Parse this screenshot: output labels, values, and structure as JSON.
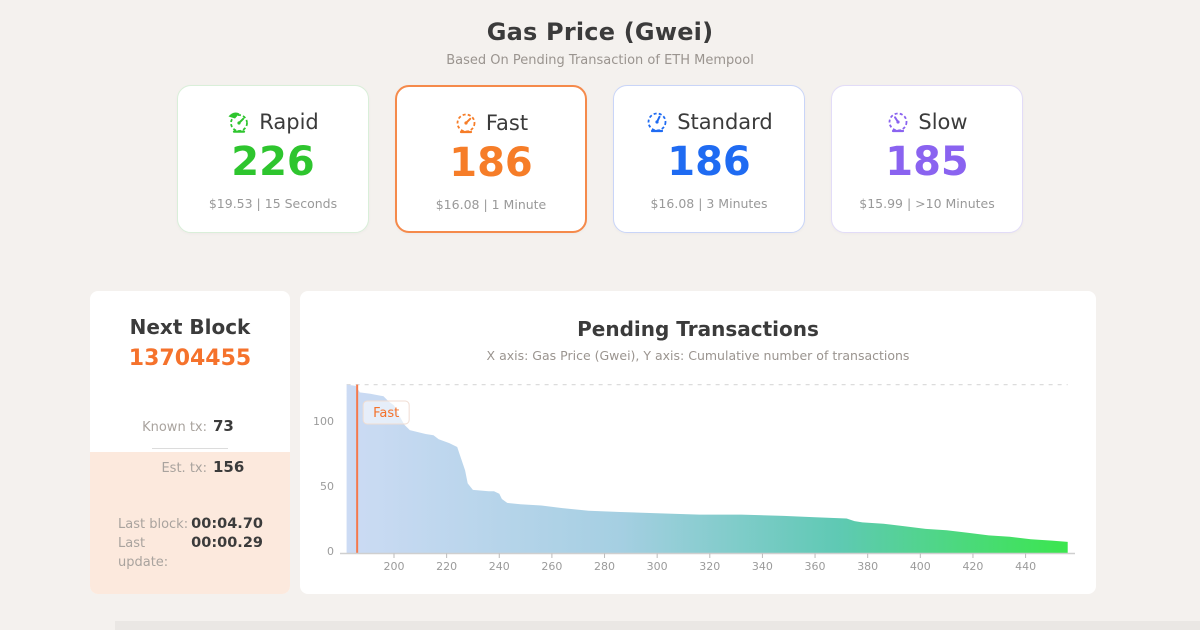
{
  "header": {
    "title": "Gas Price (Gwei)",
    "subtitle": "Based On Pending Transaction of ETH Mempool"
  },
  "cards": [
    {
      "label": "Rapid",
      "value": "226",
      "detail": "$19.53 | 15 Seconds",
      "color": "#2ec52e",
      "border": "#d9efd9",
      "border_width": 1,
      "icon": "rapid-gauge-icon",
      "selected": false
    },
    {
      "label": "Fast",
      "value": "186",
      "detail": "$16.08 | 1 Minute",
      "color": "#f67d28",
      "border": "#f58a4b",
      "border_width": 2,
      "icon": "fast-gauge-icon",
      "selected": true
    },
    {
      "label": "Standard",
      "value": "186",
      "detail": "$16.08 | 3 Minutes",
      "color": "#1f6bf2",
      "border": "#c9d5f8",
      "border_width": 1,
      "icon": "standard-gauge-icon",
      "selected": false
    },
    {
      "label": "Slow",
      "value": "185",
      "detail": "$15.99 | >10 Minutes",
      "color": "#8a63f0",
      "border": "#e2dcf8",
      "border_width": 1,
      "icon": "slow-gauge-icon",
      "selected": false
    }
  ],
  "next_block": {
    "title": "Next Block",
    "number": "13704455",
    "known_tx_label": "Known tx:",
    "known_tx_value": "73",
    "est_tx_label": "Est. tx:",
    "est_tx_value": "156",
    "last_block_label": "Last block:",
    "last_block_value": "00:04.70",
    "last_update_label": "Last update:",
    "last_update_value": "00:00.29"
  },
  "chart": {
    "title": "Pending Transactions",
    "subtitle": "X axis: Gas Price (Gwei), Y axis: Cumulative number of transactions"
  },
  "chart_data": {
    "type": "area",
    "title": "Pending Transactions",
    "xlabel": "Gas Price (Gwei)",
    "ylabel": "Cumulative number of transactions",
    "points": [
      [
        182,
        128
      ],
      [
        185.5,
        127
      ],
      [
        187,
        122
      ],
      [
        191,
        121
      ],
      [
        196,
        119
      ],
      [
        198,
        115
      ],
      [
        200,
        112
      ],
      [
        202,
        104
      ],
      [
        204,
        97
      ],
      [
        206,
        93
      ],
      [
        212,
        90
      ],
      [
        215,
        89
      ],
      [
        217,
        86
      ],
      [
        221,
        83
      ],
      [
        224,
        80
      ],
      [
        225,
        74
      ],
      [
        227,
        62
      ],
      [
        228,
        52
      ],
      [
        230,
        47
      ],
      [
        236,
        46
      ],
      [
        238,
        46
      ],
      [
        240,
        44
      ],
      [
        241,
        40
      ],
      [
        243,
        37
      ],
      [
        248,
        36
      ],
      [
        256,
        35
      ],
      [
        264,
        33
      ],
      [
        274,
        31
      ],
      [
        286,
        30
      ],
      [
        300,
        29
      ],
      [
        316,
        28
      ],
      [
        332,
        28
      ],
      [
        348,
        27
      ],
      [
        360,
        26
      ],
      [
        372,
        25
      ],
      [
        375,
        23
      ],
      [
        378,
        22
      ],
      [
        386,
        21
      ],
      [
        394,
        19
      ],
      [
        402,
        17
      ],
      [
        410,
        16
      ],
      [
        418,
        14
      ],
      [
        426,
        12
      ],
      [
        434,
        11
      ],
      [
        442,
        9
      ],
      [
        450,
        8
      ],
      [
        456,
        7
      ]
    ],
    "xticks": [
      200,
      220,
      240,
      260,
      280,
      300,
      320,
      340,
      360,
      380,
      400,
      420,
      440
    ],
    "yticks": [
      0,
      50,
      100
    ],
    "xlim": [
      182,
      456
    ],
    "ylim": [
      0,
      135
    ],
    "top_dash_value": 128,
    "marker": {
      "label": "Fast",
      "x": 186,
      "color": "#f4722b",
      "line_color": "#f5794c"
    },
    "gradient": [
      "#ccdbf4",
      "#a5cfe2",
      "#5fc9b4",
      "#3be64e"
    ],
    "axis_color": "#cfcfcf",
    "tick_text_color": "#9b9b9b",
    "grid": "top dashed line only",
    "legend": "none"
  }
}
